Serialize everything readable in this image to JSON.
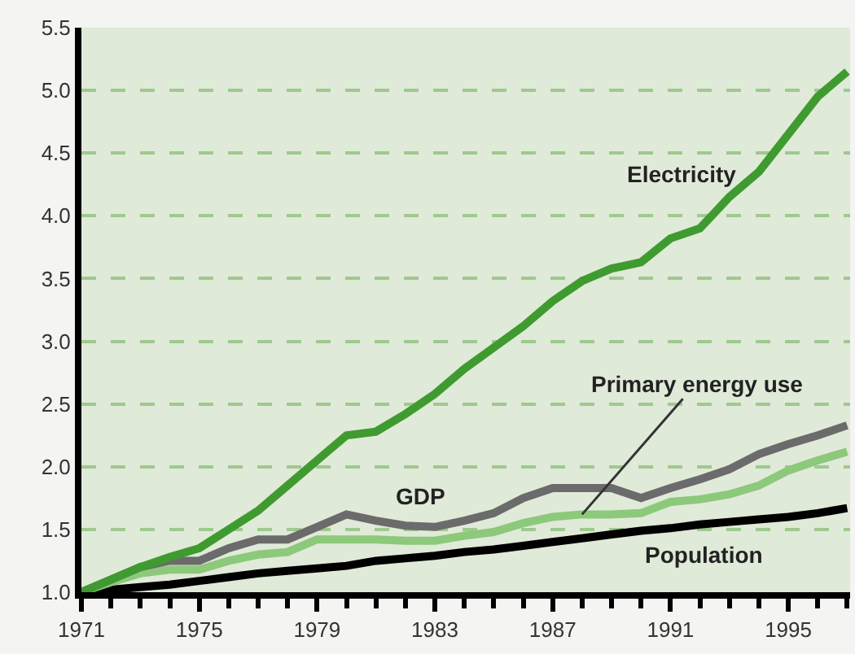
{
  "chart_data": {
    "type": "line",
    "x": [
      1971,
      1972,
      1973,
      1974,
      1975,
      1976,
      1977,
      1978,
      1979,
      1980,
      1981,
      1982,
      1983,
      1984,
      1985,
      1986,
      1987,
      1988,
      1989,
      1990,
      1991,
      1992,
      1993,
      1994,
      1995,
      1996,
      1997
    ],
    "series": [
      {
        "name": "Electricity",
        "color": "#3f9b2f",
        "values": [
          1.0,
          1.1,
          1.2,
          1.28,
          1.35,
          1.5,
          1.65,
          1.85,
          2.05,
          2.25,
          2.28,
          2.42,
          2.58,
          2.78,
          2.95,
          3.12,
          3.32,
          3.48,
          3.58,
          3.63,
          3.82,
          3.9,
          4.15,
          4.35,
          4.65,
          4.95,
          5.15
        ]
      },
      {
        "name": "GDP",
        "color": "#6b6b6b",
        "values": [
          1.0,
          1.1,
          1.2,
          1.25,
          1.25,
          1.35,
          1.42,
          1.42,
          1.52,
          1.62,
          1.57,
          1.53,
          1.52,
          1.57,
          1.63,
          1.75,
          1.83,
          1.83,
          1.83,
          1.75,
          1.83,
          1.9,
          1.98,
          2.1,
          2.18,
          2.25,
          2.33
        ]
      },
      {
        "name": "Primary energy use",
        "color": "#8cc97a",
        "values": [
          1.0,
          1.08,
          1.15,
          1.18,
          1.18,
          1.25,
          1.3,
          1.32,
          1.42,
          1.42,
          1.42,
          1.41,
          1.41,
          1.45,
          1.48,
          1.55,
          1.6,
          1.62,
          1.62,
          1.63,
          1.72,
          1.74,
          1.78,
          1.85,
          1.97,
          2.05,
          2.12
        ]
      },
      {
        "name": "Population",
        "color": "#000000",
        "values": [
          1.0,
          1.02,
          1.04,
          1.06,
          1.09,
          1.12,
          1.15,
          1.17,
          1.19,
          1.21,
          1.25,
          1.27,
          1.29,
          1.32,
          1.34,
          1.37,
          1.4,
          1.43,
          1.46,
          1.49,
          1.51,
          1.54,
          1.56,
          1.58,
          1.6,
          1.63,
          1.67
        ]
      }
    ],
    "xlim": [
      1971,
      1997.1
    ],
    "xticks": [
      1971,
      1975,
      1979,
      1983,
      1987,
      1991,
      1995
    ],
    "ylim": [
      1.0,
      5.5
    ],
    "yticks": [
      {
        "value": 1,
        "label": "1.0"
      },
      {
        "value": 1.5,
        "label": "1.5"
      },
      {
        "value": 2,
        "label": "2.0"
      },
      {
        "value": 2.5,
        "label": "2.5"
      },
      {
        "value": 3,
        "label": "3.0"
      },
      {
        "value": 3.5,
        "label": "3.5"
      },
      {
        "value": 4,
        "label": "4.0"
      },
      {
        "value": 4.5,
        "label": "4.5"
      },
      {
        "value": 5,
        "label": "5.0"
      },
      {
        "value": 5.5,
        "label": "5.5"
      }
    ],
    "grid": "y",
    "legend": false,
    "marker": "none",
    "line_style": "solid"
  }
}
